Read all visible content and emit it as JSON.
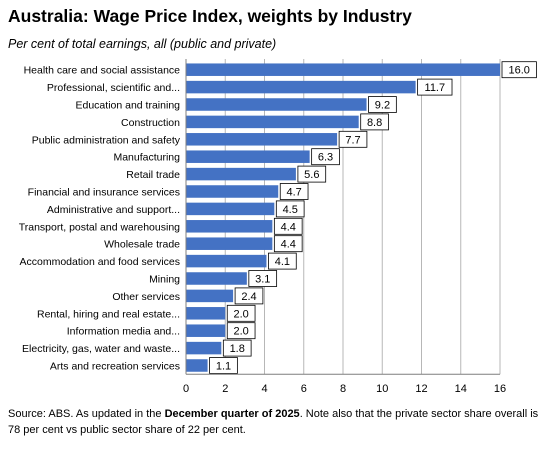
{
  "title": "Australia:  Wage Price Index, weights by Industry",
  "subtitle": "Per cent of total earnings, all (public and private)",
  "source": {
    "pre": "Source: ABS. As updated in the ",
    "bold": "December quarter of 2025",
    "post": ".  Note also that the private sector share overall is 78 per cent vs public sector share of 22 per cent."
  },
  "colors": {
    "bar": "#4472C4",
    "grid": "#b7b7b7",
    "axis": "#7f7f7f"
  },
  "chart_data": {
    "type": "bar",
    "orientation": "horizontal",
    "categories": [
      "Health care and social assistance",
      "Professional, scientific and...",
      "Education and training",
      "Construction",
      "Public administration and safety",
      "Manufacturing",
      "Retail trade",
      "Financial and insurance services",
      "Administrative and support...",
      "Transport, postal and warehousing",
      "Wholesale trade",
      "Accommodation and food services",
      "Mining",
      "Other services",
      "Rental, hiring and real estate...",
      "Information media and...",
      "Electricity, gas, water and waste...",
      "Arts and recreation services"
    ],
    "values": [
      16.0,
      11.7,
      9.2,
      8.8,
      7.7,
      6.3,
      5.6,
      4.7,
      4.5,
      4.4,
      4.4,
      4.1,
      3.1,
      2.4,
      2.0,
      2.0,
      1.8,
      1.1
    ],
    "value_labels": [
      "16.0",
      "11.7",
      "9.2",
      "8.8",
      "7.7",
      "6.3",
      "5.6",
      "4.7",
      "4.5",
      "4.4",
      "4.4",
      "4.1",
      "3.1",
      "2.4",
      "2.0",
      "2.0",
      "1.8",
      "1.1"
    ],
    "xlim": [
      0,
      16
    ],
    "xticks": [
      "0",
      "2",
      "4",
      "6",
      "8",
      "10",
      "12",
      "14",
      "16"
    ],
    "grid": true
  }
}
